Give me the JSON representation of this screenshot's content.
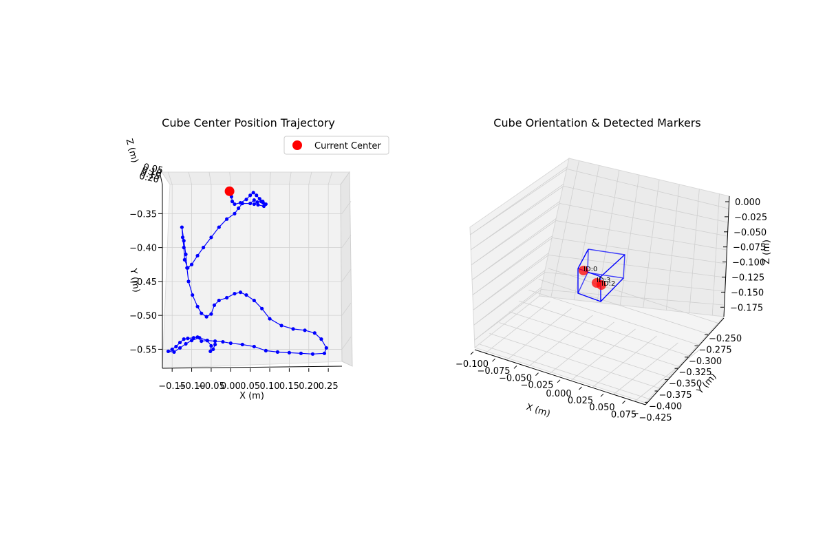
{
  "chart_data": [
    {
      "type": "line",
      "title": "Cube Center Position Trajectory",
      "xlabel": "X (m)",
      "ylabel": "Y (m)",
      "zlabel": "Z (m)",
      "xlim": [
        -0.175,
        0.285
      ],
      "ylim": [
        -0.578,
        -0.307
      ],
      "xticks": [
        "−0.15",
        "−0.10",
        "−0.05",
        "0.00",
        "0.05",
        "0.10",
        "0.15",
        "0.20",
        "0.25"
      ],
      "xtick_values": [
        -0.15,
        -0.1,
        -0.05,
        0.0,
        0.05,
        0.1,
        0.15,
        0.2,
        0.25
      ],
      "yticks": [
        "−0.35",
        "−0.40",
        "−0.45",
        "−0.50",
        "−0.55"
      ],
      "ytick_values": [
        -0.35,
        -0.4,
        -0.45,
        -0.5,
        -0.55
      ],
      "zticks": [
        "0.05",
        "0.10",
        "0.15",
        "0.20"
      ],
      "grid": true,
      "legend": {
        "position": "top-right",
        "entries": [
          "Current Center"
        ]
      },
      "series": [
        {
          "name": "trajectory",
          "color": "#0000ff",
          "points": [
            [
              0.06,
              -0.33
            ],
            [
              0.05,
              -0.335
            ],
            [
              0.03,
              -0.335
            ],
            [
              0.02,
              -0.342
            ],
            [
              0.01,
              -0.35
            ],
            [
              -0.01,
              -0.358
            ],
            [
              -0.03,
              -0.37
            ],
            [
              -0.05,
              -0.385
            ],
            [
              -0.07,
              -0.4
            ],
            [
              -0.085,
              -0.412
            ],
            [
              -0.1,
              -0.425
            ],
            [
              -0.11,
              -0.43
            ],
            [
              -0.118,
              -0.418
            ],
            [
              -0.12,
              -0.4
            ],
            [
              -0.123,
              -0.385
            ],
            [
              -0.125,
              -0.37
            ],
            [
              -0.12,
              -0.39
            ],
            [
              -0.115,
              -0.41
            ],
            [
              -0.112,
              -0.43
            ],
            [
              -0.108,
              -0.45
            ],
            [
              -0.098,
              -0.47
            ],
            [
              -0.085,
              -0.487
            ],
            [
              -0.075,
              -0.497
            ],
            [
              -0.062,
              -0.502
            ],
            [
              -0.05,
              -0.498
            ],
            [
              -0.042,
              -0.485
            ],
            [
              -0.03,
              -0.478
            ],
            [
              -0.01,
              -0.474
            ],
            [
              0.01,
              -0.468
            ],
            [
              0.025,
              -0.466
            ],
            [
              0.04,
              -0.47
            ],
            [
              0.06,
              -0.478
            ],
            [
              0.08,
              -0.49
            ],
            [
              0.1,
              -0.505
            ],
            [
              0.13,
              -0.515
            ],
            [
              0.16,
              -0.52
            ],
            [
              0.19,
              -0.522
            ],
            [
              0.215,
              -0.526
            ],
            [
              0.232,
              -0.535
            ],
            [
              0.245,
              -0.548
            ],
            [
              0.24,
              -0.556
            ],
            [
              0.21,
              -0.557
            ],
            [
              0.18,
              -0.556
            ],
            [
              0.15,
              -0.555
            ],
            [
              0.12,
              -0.554
            ],
            [
              0.09,
              -0.552
            ],
            [
              0.06,
              -0.546
            ],
            [
              0.03,
              -0.543
            ],
            [
              0.0,
              -0.541
            ],
            [
              -0.02,
              -0.539
            ],
            [
              -0.04,
              -0.538
            ],
            [
              -0.06,
              -0.537
            ],
            [
              -0.075,
              -0.538
            ],
            [
              -0.085,
              -0.532
            ],
            [
              -0.095,
              -0.533
            ],
            [
              -0.11,
              -0.534
            ],
            [
              -0.12,
              -0.535
            ],
            [
              -0.13,
              -0.54
            ],
            [
              -0.14,
              -0.546
            ],
            [
              -0.15,
              -0.55
            ],
            [
              -0.16,
              -0.553
            ],
            [
              -0.145,
              -0.554
            ],
            [
              -0.13,
              -0.548
            ],
            [
              -0.115,
              -0.542
            ],
            [
              -0.1,
              -0.537
            ],
            [
              -0.08,
              -0.533
            ],
            [
              -0.06,
              -0.537
            ],
            [
              -0.05,
              -0.545
            ],
            [
              -0.052,
              -0.553
            ],
            [
              -0.045,
              -0.55
            ],
            [
              -0.04,
              -0.543
            ]
          ],
          "loop_points": [
            [
              0.0,
              -0.317
            ],
            [
              0.002,
              -0.325
            ],
            [
              0.004,
              -0.332
            ],
            [
              0.01,
              -0.336
            ],
            [
              0.025,
              -0.334
            ],
            [
              0.04,
              -0.329
            ],
            [
              0.05,
              -0.323
            ],
            [
              0.058,
              -0.319
            ],
            [
              0.066,
              -0.323
            ],
            [
              0.074,
              -0.328
            ],
            [
              0.082,
              -0.332
            ],
            [
              0.09,
              -0.336
            ],
            [
              0.085,
              -0.339
            ],
            [
              0.07,
              -0.337
            ],
            [
              0.06,
              -0.336
            ],
            [
              0.068,
              -0.333
            ],
            [
              0.078,
              -0.332
            ],
            [
              0.083,
              -0.334
            ]
          ]
        },
        {
          "name": "Current Center",
          "color": "#ff0000",
          "points": [
            [
              -0.003,
              -0.317
            ]
          ]
        }
      ]
    },
    {
      "type": "scatter",
      "title": "Cube Orientation & Detected Markers",
      "xlabel": "X (m)",
      "ylabel": "Y (m)",
      "zlabel": "Z (m)",
      "xticks": [
        "−0.100",
        "−0.075",
        "−0.050",
        "−0.025",
        "0.000",
        "0.025",
        "0.050",
        "0.075"
      ],
      "yticks": [
        "−0.250",
        "−0.275",
        "−0.300",
        "−0.325",
        "−0.350",
        "−0.375",
        "−0.400",
        "−0.425"
      ],
      "zticks": [
        "0.000",
        "−0.025",
        "−0.050",
        "−0.075",
        "−0.100",
        "−0.125",
        "−0.150",
        "−0.175"
      ],
      "grid": true,
      "cube_edge_color": "#0000ff",
      "markers": [
        {
          "label": "ID:0",
          "color": "#ff0000"
        },
        {
          "label": "ID:3",
          "color": "#ff0000"
        },
        {
          "label": "ID:2",
          "color": "#ff0000"
        }
      ]
    }
  ]
}
